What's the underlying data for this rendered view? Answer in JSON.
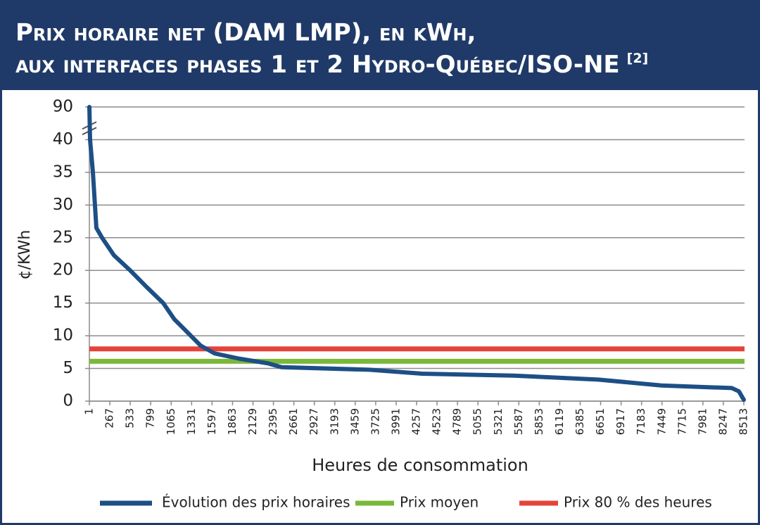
{
  "chart_data": {
    "type": "line",
    "title": [
      "Prix horaire net (DAM LMP), en kWh,",
      "aux interfaces phases 1 et 2 Hydro-Québec/ISO-NE"
    ],
    "title_note": "[2]",
    "x_label": "Heures de consommation",
    "y_label": "¢/KWh",
    "xlim": [
      1,
      8513
    ],
    "xticks": [
      1,
      267,
      533,
      799,
      1065,
      1331,
      1597,
      1863,
      2129,
      2395,
      2661,
      2927,
      3193,
      3459,
      3725,
      3991,
      4257,
      4523,
      4789,
      5055,
      5321,
      5587,
      5853,
      6119,
      6385,
      6651,
      6917,
      7183,
      7449,
      7715,
      7981,
      8247,
      8513
    ],
    "ylim": [
      0,
      90
    ],
    "yticks": [
      0,
      5,
      10,
      15,
      20,
      25,
      30,
      35,
      40,
      90
    ],
    "axis_break": [
      40,
      90
    ],
    "grid": true,
    "legend": "bottom",
    "series": [
      {
        "name": "Évolution des prix horaires",
        "color": "#1d4f85",
        "x": [
          1,
          10,
          47,
          92,
          166,
          321,
          532,
          742,
          962,
          1108,
          1237,
          1447,
          1630,
          1950,
          2317,
          2500,
          3644,
          4330,
          5520,
          6618,
          7442,
          8357,
          8449,
          8513
        ],
        "values": [
          90,
          40,
          35,
          26.5,
          25,
          22.3,
          20,
          17.5,
          15,
          12.5,
          11,
          8.5,
          7.3,
          6.5,
          5.8,
          5.2,
          4.8,
          4.2,
          3.9,
          3.3,
          2.4,
          2.0,
          1.5,
          0.2
        ]
      }
    ],
    "reference_lines": [
      {
        "name": "Prix moyen",
        "color": "#7ab83a",
        "value": 6.1
      },
      {
        "name": "Prix 80 % des heures",
        "color": "#e5433a",
        "value": 8.0
      }
    ]
  }
}
